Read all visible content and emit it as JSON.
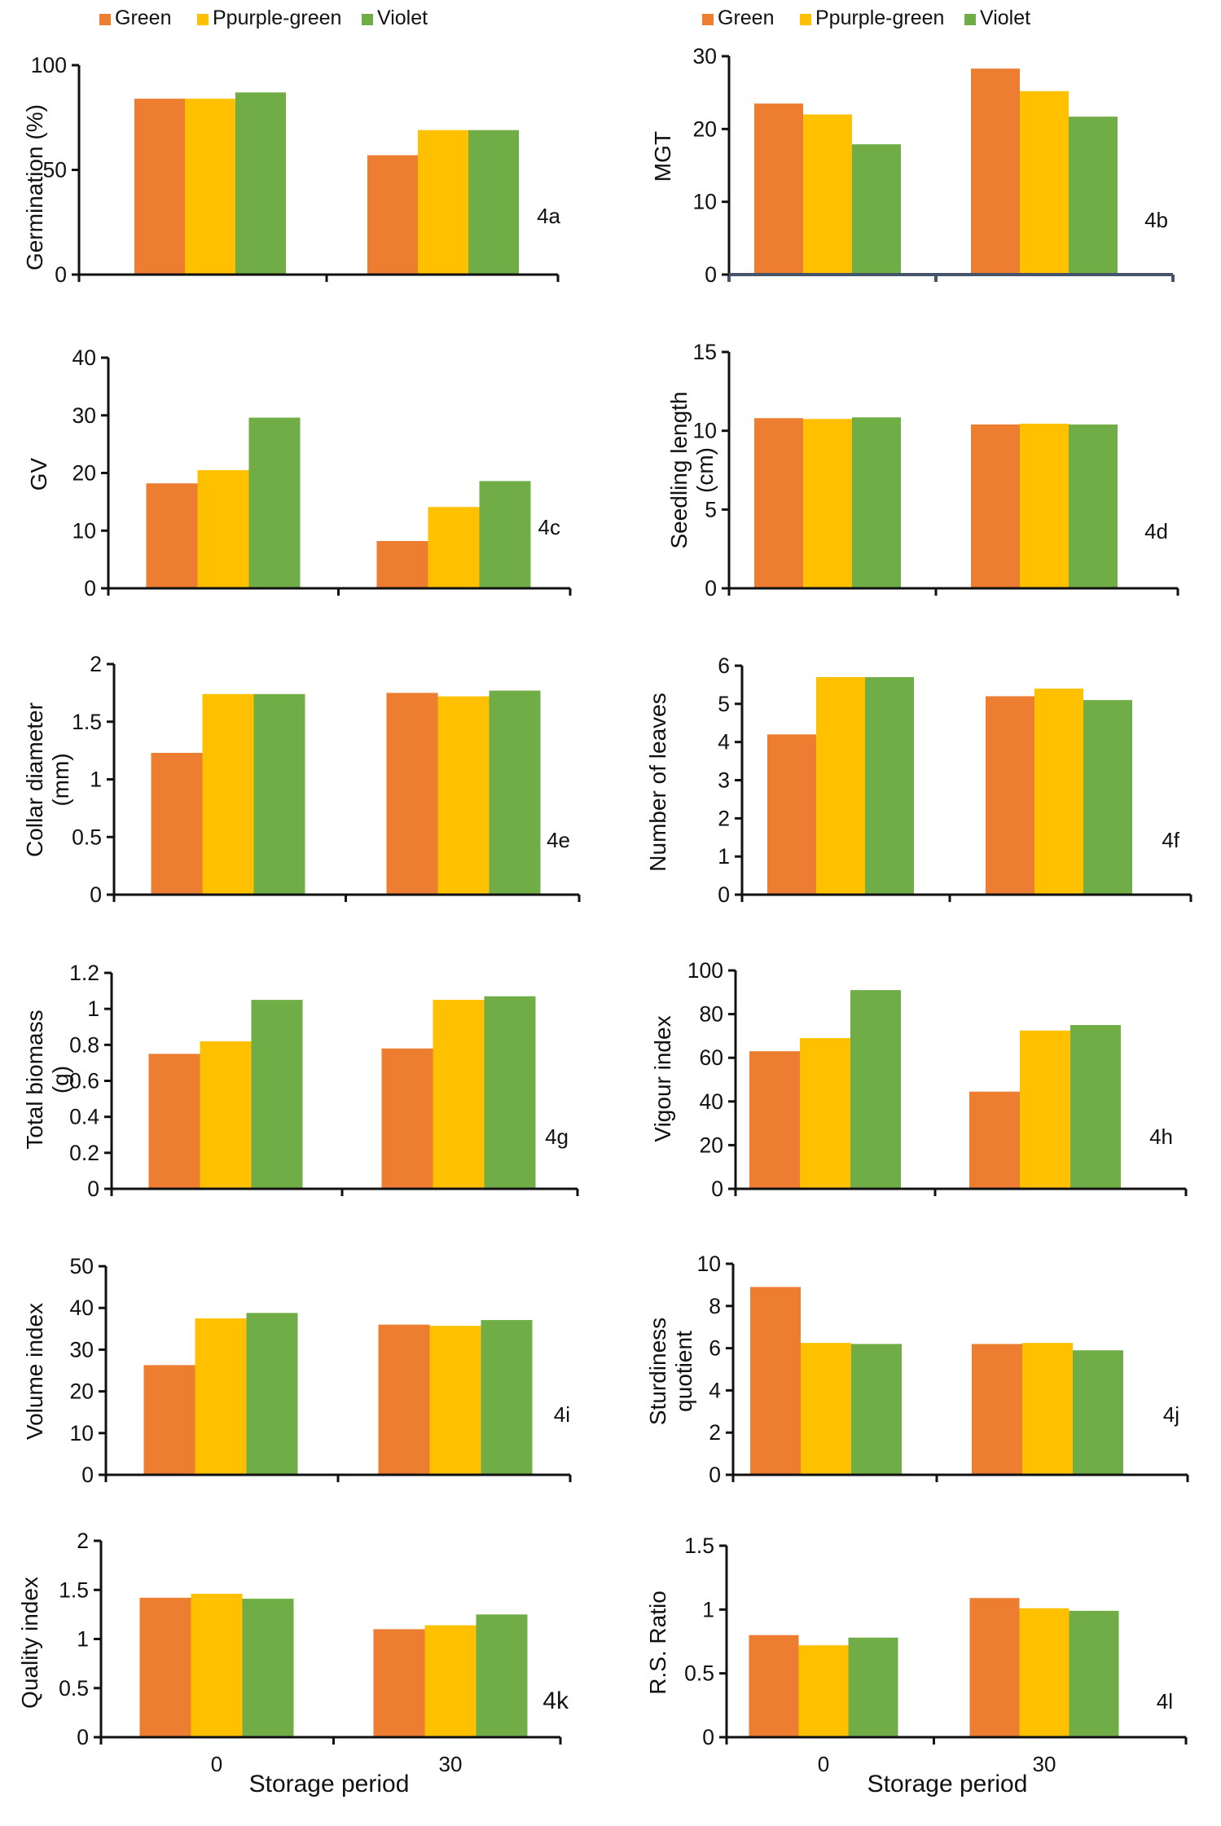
{
  "legend": {
    "left": [
      {
        "label": "Green",
        "color": "#ED7D31"
      },
      {
        "label": "Ppurple-green",
        "color": "#FFC000"
      },
      {
        "label": "Violet",
        "color": "#70AD47"
      }
    ],
    "right": [
      {
        "label": "Green",
        "color": "#ED7D31"
      },
      {
        "label": "Ppurple-green",
        "color": "#FFC000"
      },
      {
        "label": "Violet",
        "color": "#70AD47"
      }
    ]
  },
  "x_axis_titles": {
    "left": "Storage period",
    "right": "Storage period"
  },
  "chart_data": [
    {
      "id": "4a",
      "type": "bar",
      "panel_label": "4a",
      "ylabel": "Germination (%)",
      "categories": [
        "0",
        "30"
      ],
      "show_xticklabels": false,
      "ylim": [
        0,
        100
      ],
      "yticks": [
        0,
        50,
        100
      ],
      "ytick_labels": [
        "0",
        "50",
        "100"
      ],
      "series": [
        {
          "name": "Green",
          "values": [
            84,
            57
          ]
        },
        {
          "name": "Ppurple-green",
          "values": [
            84,
            69
          ]
        },
        {
          "name": "Violet",
          "values": [
            87,
            69
          ]
        }
      ]
    },
    {
      "id": "4b",
      "type": "bar",
      "panel_label": "4b",
      "ylabel": "MGT",
      "categories": [
        "0",
        "30"
      ],
      "show_xticklabels": false,
      "ylim": [
        0,
        30
      ],
      "yticks": [
        0,
        10,
        20,
        30
      ],
      "ytick_labels": [
        "0",
        "10",
        "20",
        "30"
      ],
      "series": [
        {
          "name": "Green",
          "values": [
            23.5,
            28.3
          ]
        },
        {
          "name": "Ppurple-green",
          "values": [
            22,
            25.2
          ]
        },
        {
          "name": "Violet",
          "values": [
            17.9,
            21.7
          ]
        }
      ]
    },
    {
      "id": "4c",
      "type": "bar",
      "panel_label": "4c",
      "ylabel": "GV",
      "categories": [
        "0",
        "30"
      ],
      "show_xticklabels": false,
      "ylim": [
        0,
        40
      ],
      "yticks": [
        0,
        10,
        20,
        30,
        40
      ],
      "ytick_labels": [
        "0",
        "10",
        "20",
        "30",
        "40"
      ],
      "series": [
        {
          "name": "Green",
          "values": [
            18.2,
            8.2
          ]
        },
        {
          "name": "Ppurple-green",
          "values": [
            20.5,
            14.1
          ]
        },
        {
          "name": "Violet",
          "values": [
            29.6,
            18.6
          ]
        }
      ]
    },
    {
      "id": "4d",
      "type": "bar",
      "panel_label": "4d",
      "ylabel_lines": [
        "Seedling length",
        "(cm)"
      ],
      "categories": [
        "0",
        "30"
      ],
      "show_xticklabels": false,
      "ylim": [
        0,
        15
      ],
      "yticks": [
        0,
        5,
        10,
        15
      ],
      "ytick_labels": [
        "0",
        "5",
        "10",
        "15"
      ],
      "series": [
        {
          "name": "Green",
          "values": [
            10.8,
            10.4
          ]
        },
        {
          "name": "Ppurple-green",
          "values": [
            10.75,
            10.45
          ]
        },
        {
          "name": "Violet",
          "values": [
            10.85,
            10.4
          ]
        }
      ]
    },
    {
      "id": "4e",
      "type": "bar",
      "panel_label": "4e",
      "ylabel_lines": [
        "Collar diameter",
        "(mm)"
      ],
      "categories": [
        "0",
        "30"
      ],
      "show_xticklabels": false,
      "ylim": [
        0,
        2
      ],
      "yticks": [
        0,
        0.5,
        1,
        1.5,
        2
      ],
      "ytick_labels": [
        "0",
        "0.5",
        "1",
        "1.5",
        "2"
      ],
      "series": [
        {
          "name": "Green",
          "values": [
            1.23,
            1.75
          ]
        },
        {
          "name": "Ppurple-green",
          "values": [
            1.74,
            1.72
          ]
        },
        {
          "name": "Violet",
          "values": [
            1.74,
            1.77
          ]
        }
      ]
    },
    {
      "id": "4f",
      "type": "bar",
      "panel_label": "4f",
      "ylabel": "Number of leaves",
      "categories": [
        "0",
        "30"
      ],
      "show_xticklabels": false,
      "ylim": [
        0,
        6
      ],
      "yticks": [
        0,
        1,
        2,
        3,
        4,
        5,
        6
      ],
      "ytick_labels": [
        "0",
        "1",
        "2",
        "3",
        "4",
        "5",
        "6"
      ],
      "series": [
        {
          "name": "Green",
          "values": [
            4.2,
            5.2
          ]
        },
        {
          "name": "Ppurple-green",
          "values": [
            5.7,
            5.4
          ]
        },
        {
          "name": "Violet",
          "values": [
            5.7,
            5.1
          ]
        }
      ]
    },
    {
      "id": "4g",
      "type": "bar",
      "panel_label": "4g",
      "ylabel_lines": [
        "Total biomass",
        "(g)"
      ],
      "categories": [
        "0",
        "30"
      ],
      "show_xticklabels": false,
      "ylim": [
        0,
        1.2
      ],
      "yticks": [
        0,
        0.2,
        0.4,
        0.6,
        0.8,
        1,
        1.2
      ],
      "ytick_labels": [
        "0",
        "0.2",
        "0.4",
        "0.6",
        "0.8",
        "1",
        "1.2"
      ],
      "series": [
        {
          "name": "Green",
          "values": [
            0.75,
            0.78
          ]
        },
        {
          "name": "Ppurple-green",
          "values": [
            0.82,
            1.05
          ]
        },
        {
          "name": "Violet",
          "values": [
            1.05,
            1.07
          ]
        }
      ]
    },
    {
      "id": "4h",
      "type": "bar",
      "panel_label": "4h",
      "ylabel": "Vigour index",
      "categories": [
        "0",
        "30"
      ],
      "show_xticklabels": false,
      "ylim": [
        0,
        100
      ],
      "yticks": [
        0,
        20,
        40,
        60,
        80,
        100
      ],
      "ytick_labels": [
        "0",
        "20",
        "40",
        "60",
        "80",
        "100"
      ],
      "series": [
        {
          "name": "Green",
          "values": [
            63,
            44.5
          ]
        },
        {
          "name": "Ppurple-green",
          "values": [
            69,
            72.5
          ]
        },
        {
          "name": "Violet",
          "values": [
            91,
            75
          ]
        }
      ]
    },
    {
      "id": "4i",
      "type": "bar",
      "panel_label": "4i",
      "ylabel": "Volume index",
      "categories": [
        "0",
        "30"
      ],
      "show_xticklabels": false,
      "ylim": [
        0,
        50
      ],
      "yticks": [
        0,
        10,
        20,
        30,
        40,
        50
      ],
      "ytick_labels": [
        "0",
        "10",
        "20",
        "30",
        "40",
        "50"
      ],
      "series": [
        {
          "name": "Green",
          "values": [
            26.3,
            36
          ]
        },
        {
          "name": "Ppurple-green",
          "values": [
            37.5,
            35.7
          ]
        },
        {
          "name": "Violet",
          "values": [
            38.8,
            37.1
          ]
        }
      ]
    },
    {
      "id": "4j",
      "type": "bar",
      "panel_label": "4j",
      "ylabel_lines": [
        "Sturdiness",
        "quotient"
      ],
      "categories": [
        "0",
        "30"
      ],
      "show_xticklabels": false,
      "ylim": [
        0,
        10
      ],
      "yticks": [
        0,
        2,
        4,
        6,
        8,
        10
      ],
      "ytick_labels": [
        "0",
        "2",
        "4",
        "6",
        "8",
        "10"
      ],
      "series": [
        {
          "name": "Green",
          "values": [
            8.9,
            6.2
          ]
        },
        {
          "name": "Ppurple-green",
          "values": [
            6.25,
            6.25
          ]
        },
        {
          "name": "Violet",
          "values": [
            6.2,
            5.9
          ]
        }
      ]
    },
    {
      "id": "4k",
      "type": "bar",
      "panel_label": "4k",
      "ylabel": "Quality index",
      "categories": [
        "0",
        "30"
      ],
      "show_xticklabels": true,
      "ylim": [
        0,
        2
      ],
      "yticks": [
        0,
        0.5,
        1,
        1.5,
        2
      ],
      "ytick_labels": [
        "0",
        "0.5",
        "1",
        "1.5",
        "2"
      ],
      "series": [
        {
          "name": "Green",
          "values": [
            1.42,
            1.1
          ]
        },
        {
          "name": "Ppurple-green",
          "values": [
            1.46,
            1.14
          ]
        },
        {
          "name": "Violet",
          "values": [
            1.41,
            1.25
          ]
        }
      ]
    },
    {
      "id": "4l",
      "type": "bar",
      "panel_label": "4l",
      "ylabel": "R.S. Ratio",
      "categories": [
        "0",
        "30"
      ],
      "show_xticklabels": true,
      "ylim": [
        0,
        1.5
      ],
      "yticks": [
        0,
        0.5,
        1,
        1.5
      ],
      "ytick_labels": [
        "0",
        "0.5",
        "1",
        "1.5"
      ],
      "series": [
        {
          "name": "Green",
          "values": [
            0.8,
            1.09
          ]
        },
        {
          "name": "Ppurple-green",
          "values": [
            0.72,
            1.01
          ]
        },
        {
          "name": "Violet",
          "values": [
            0.78,
            0.99
          ]
        }
      ]
    }
  ]
}
